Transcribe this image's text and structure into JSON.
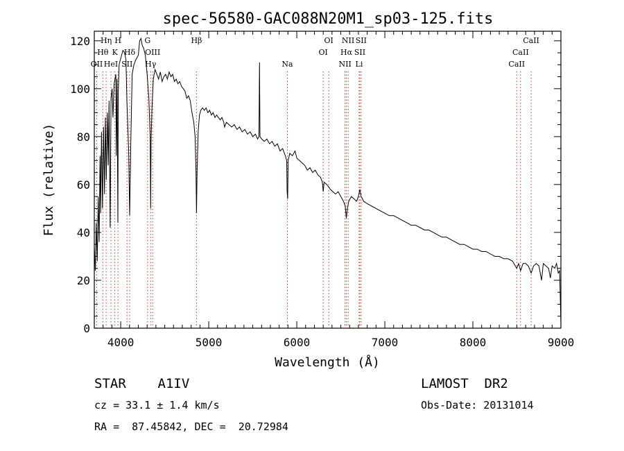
{
  "chart_data": {
    "type": "line",
    "title": "spec-56580-GAC088N20M1_sp03-125.fits",
    "xlabel": "Wavelength (Å)",
    "ylabel": "Flux (relative)",
    "xlim": [
      3700,
      9000
    ],
    "ylim": [
      0,
      124
    ],
    "xticks": [
      4000,
      5000,
      6000,
      7000,
      8000,
      9000
    ],
    "yticks": [
      0,
      20,
      40,
      60,
      80,
      100,
      120
    ],
    "grid": false,
    "series": [
      {
        "name": "",
        "points": [
          [
            3700,
            34
          ],
          [
            3712,
            24
          ],
          [
            3722,
            44
          ],
          [
            3734,
            28
          ],
          [
            3745,
            55
          ],
          [
            3755,
            36
          ],
          [
            3765,
            72
          ],
          [
            3772,
            48
          ],
          [
            3782,
            82
          ],
          [
            3793,
            50
          ],
          [
            3805,
            84
          ],
          [
            3816,
            56
          ],
          [
            3826,
            88
          ],
          [
            3836,
            62
          ],
          [
            3848,
            90
          ],
          [
            3858,
            68
          ],
          [
            3868,
            95
          ],
          [
            3880,
            42
          ],
          [
            3890,
            96
          ],
          [
            3902,
            100
          ],
          [
            3912,
            88
          ],
          [
            3925,
            102
          ],
          [
            3935,
            104
          ],
          [
            3945,
            106
          ],
          [
            3950,
            72
          ],
          [
            3958,
            104
          ],
          [
            3968,
            44
          ],
          [
            3972,
            98
          ],
          [
            3982,
            110
          ],
          [
            3995,
            112
          ],
          [
            4010,
            114
          ],
          [
            4025,
            116
          ],
          [
            4045,
            115
          ],
          [
            4060,
            112
          ],
          [
            4070,
            95
          ],
          [
            4090,
            75
          ],
          [
            4102,
            47
          ],
          [
            4115,
            78
          ],
          [
            4130,
            106
          ],
          [
            4150,
            110
          ],
          [
            4170,
            112
          ],
          [
            4200,
            114
          ],
          [
            4215,
            120
          ],
          [
            4230,
            121
          ],
          [
            4245,
            118
          ],
          [
            4260,
            117
          ],
          [
            4280,
            114
          ],
          [
            4300,
            106
          ],
          [
            4320,
            96
          ],
          [
            4335,
            80
          ],
          [
            4340,
            50
          ],
          [
            4345,
            78
          ],
          [
            4355,
            92
          ],
          [
            4370,
            104
          ],
          [
            4390,
            108
          ],
          [
            4410,
            106
          ],
          [
            4430,
            104
          ],
          [
            4450,
            107
          ],
          [
            4470,
            103
          ],
          [
            4490,
            105
          ],
          [
            4510,
            106
          ],
          [
            4530,
            104
          ],
          [
            4550,
            107
          ],
          [
            4570,
            105
          ],
          [
            4590,
            106
          ],
          [
            4610,
            103
          ],
          [
            4630,
            104
          ],
          [
            4650,
            102
          ],
          [
            4670,
            103
          ],
          [
            4690,
            101
          ],
          [
            4710,
            100
          ],
          [
            4730,
            99
          ],
          [
            4750,
            96
          ],
          [
            4770,
            97
          ],
          [
            4790,
            95
          ],
          [
            4810,
            90
          ],
          [
            4830,
            86
          ],
          [
            4845,
            80
          ],
          [
            4855,
            65
          ],
          [
            4861,
            48
          ],
          [
            4868,
            66
          ],
          [
            4880,
            82
          ],
          [
            4895,
            89
          ],
          [
            4910,
            91
          ],
          [
            4930,
            92
          ],
          [
            4950,
            91
          ],
          [
            4970,
            92
          ],
          [
            4990,
            90
          ],
          [
            5010,
            91
          ],
          [
            5030,
            89
          ],
          [
            5050,
            90
          ],
          [
            5070,
            88
          ],
          [
            5090,
            89
          ],
          [
            5110,
            88
          ],
          [
            5130,
            87
          ],
          [
            5150,
            88
          ],
          [
            5170,
            86
          ],
          [
            5180,
            84
          ],
          [
            5200,
            86
          ],
          [
            5230,
            85
          ],
          [
            5260,
            84
          ],
          [
            5290,
            85
          ],
          [
            5320,
            83
          ],
          [
            5350,
            84
          ],
          [
            5380,
            82
          ],
          [
            5410,
            83
          ],
          [
            5440,
            81
          ],
          [
            5470,
            82
          ],
          [
            5500,
            80
          ],
          [
            5530,
            81
          ],
          [
            5555,
            79
          ],
          [
            5570,
            80
          ],
          [
            5577,
            111
          ],
          [
            5582,
            80
          ],
          [
            5600,
            79
          ],
          [
            5630,
            78
          ],
          [
            5660,
            79
          ],
          [
            5690,
            77
          ],
          [
            5720,
            78
          ],
          [
            5750,
            76
          ],
          [
            5780,
            77
          ],
          [
            5810,
            74
          ],
          [
            5840,
            75
          ],
          [
            5870,
            72
          ],
          [
            5885,
            70
          ],
          [
            5890,
            57
          ],
          [
            5896,
            54
          ],
          [
            5902,
            70
          ],
          [
            5920,
            73
          ],
          [
            5950,
            72
          ],
          [
            5980,
            74
          ],
          [
            6000,
            71
          ],
          [
            6030,
            70
          ],
          [
            6060,
            69
          ],
          [
            6090,
            68
          ],
          [
            6120,
            66
          ],
          [
            6150,
            67
          ],
          [
            6180,
            65
          ],
          [
            6210,
            66
          ],
          [
            6240,
            64
          ],
          [
            6270,
            63
          ],
          [
            6290,
            61
          ],
          [
            6300,
            57
          ],
          [
            6310,
            61
          ],
          [
            6340,
            60
          ],
          [
            6363,
            59
          ],
          [
            6380,
            58
          ],
          [
            6410,
            57
          ],
          [
            6440,
            56
          ],
          [
            6470,
            57
          ],
          [
            6500,
            55
          ],
          [
            6530,
            53
          ],
          [
            6550,
            51
          ],
          [
            6563,
            46
          ],
          [
            6575,
            50
          ],
          [
            6590,
            53
          ],
          [
            6620,
            55
          ],
          [
            6650,
            54
          ],
          [
            6680,
            53
          ],
          [
            6700,
            55
          ],
          [
            6716,
            58
          ],
          [
            6731,
            55
          ],
          [
            6760,
            53
          ],
          [
            6800,
            52
          ],
          [
            6850,
            51
          ],
          [
            6900,
            50
          ],
          [
            6950,
            49
          ],
          [
            7000,
            48
          ],
          [
            7050,
            47
          ],
          [
            7100,
            47
          ],
          [
            7150,
            46
          ],
          [
            7200,
            45
          ],
          [
            7250,
            44
          ],
          [
            7300,
            43
          ],
          [
            7350,
            43
          ],
          [
            7400,
            42
          ],
          [
            7450,
            41
          ],
          [
            7500,
            41
          ],
          [
            7550,
            40
          ],
          [
            7600,
            39
          ],
          [
            7650,
            38
          ],
          [
            7700,
            38
          ],
          [
            7750,
            37
          ],
          [
            7800,
            36
          ],
          [
            7850,
            35
          ],
          [
            7900,
            35
          ],
          [
            7950,
            34
          ],
          [
            8000,
            33
          ],
          [
            8050,
            33
          ],
          [
            8100,
            32
          ],
          [
            8150,
            32
          ],
          [
            8200,
            31
          ],
          [
            8250,
            30
          ],
          [
            8300,
            30
          ],
          [
            8350,
            29
          ],
          [
            8400,
            29
          ],
          [
            8450,
            28
          ],
          [
            8498,
            25
          ],
          [
            8520,
            27
          ],
          [
            8542,
            24
          ],
          [
            8570,
            27
          ],
          [
            8600,
            27
          ],
          [
            8630,
            26
          ],
          [
            8662,
            23
          ],
          [
            8690,
            26
          ],
          [
            8720,
            27
          ],
          [
            8750,
            26
          ],
          [
            8780,
            20
          ],
          [
            8800,
            27
          ],
          [
            8830,
            26
          ],
          [
            8860,
            25
          ],
          [
            8880,
            21
          ],
          [
            8900,
            26
          ],
          [
            8930,
            25
          ],
          [
            8950,
            27
          ],
          [
            8970,
            23
          ],
          [
            8985,
            24
          ],
          [
            9000,
            2
          ]
        ]
      }
    ],
    "line_markers": [
      {
        "label": "OII",
        "wavelength": 3727,
        "row": 3
      },
      {
        "label": "Hθ",
        "wavelength": 3797,
        "row": 2
      },
      {
        "label": "Hη",
        "wavelength": 3835,
        "row": 1
      },
      {
        "label": "HeI",
        "wavelength": 3889,
        "row": 3
      },
      {
        "label": "K",
        "wavelength": 3934,
        "row": 2
      },
      {
        "label": "H",
        "wavelength": 3969,
        "row": 1
      },
      {
        "label": "SII",
        "wavelength": 4072,
        "row": 3
      },
      {
        "label": "Hδ",
        "wavelength": 4102,
        "row": 2
      },
      {
        "label": "G",
        "wavelength": 4305,
        "row": 1
      },
      {
        "label": "Hγ",
        "wavelength": 4340,
        "row": 3
      },
      {
        "label": "OIII",
        "wavelength": 4363,
        "row": 2
      },
      {
        "label": "Hβ",
        "wavelength": 4861,
        "row": 1
      },
      {
        "label": "Na",
        "wavelength": 5893,
        "row": 3
      },
      {
        "label": "OI",
        "wavelength": 6300,
        "row": 2
      },
      {
        "label": "OI",
        "wavelength": 6363,
        "row": 1
      },
      {
        "label": "NII",
        "wavelength": 6548,
        "row": 3
      },
      {
        "label": "Hα",
        "wavelength": 6563,
        "row": 2
      },
      {
        "label": "NII",
        "wavelength": 6583,
        "row": 1
      },
      {
        "label": "Li",
        "wavelength": 6708,
        "row": 3
      },
      {
        "label": "SII",
        "wavelength": 6716,
        "row": 2
      },
      {
        "label": "SII",
        "wavelength": 6731,
        "row": 1
      },
      {
        "label": "CaII",
        "wavelength": 8498,
        "row": 3
      },
      {
        "label": "CaII",
        "wavelength": 8542,
        "row": 2
      },
      {
        "label": "CaII",
        "wavelength": 8662,
        "row": 1
      }
    ]
  },
  "info": {
    "class_line": "STAR    A1IV",
    "survey": "LAMOST  DR2",
    "cz": "cz = 33.1 ± 1.4 km/s",
    "obs_date": "Obs-Date: 20131014",
    "coords": "RA =  87.45842, DEC =  20.72984"
  }
}
